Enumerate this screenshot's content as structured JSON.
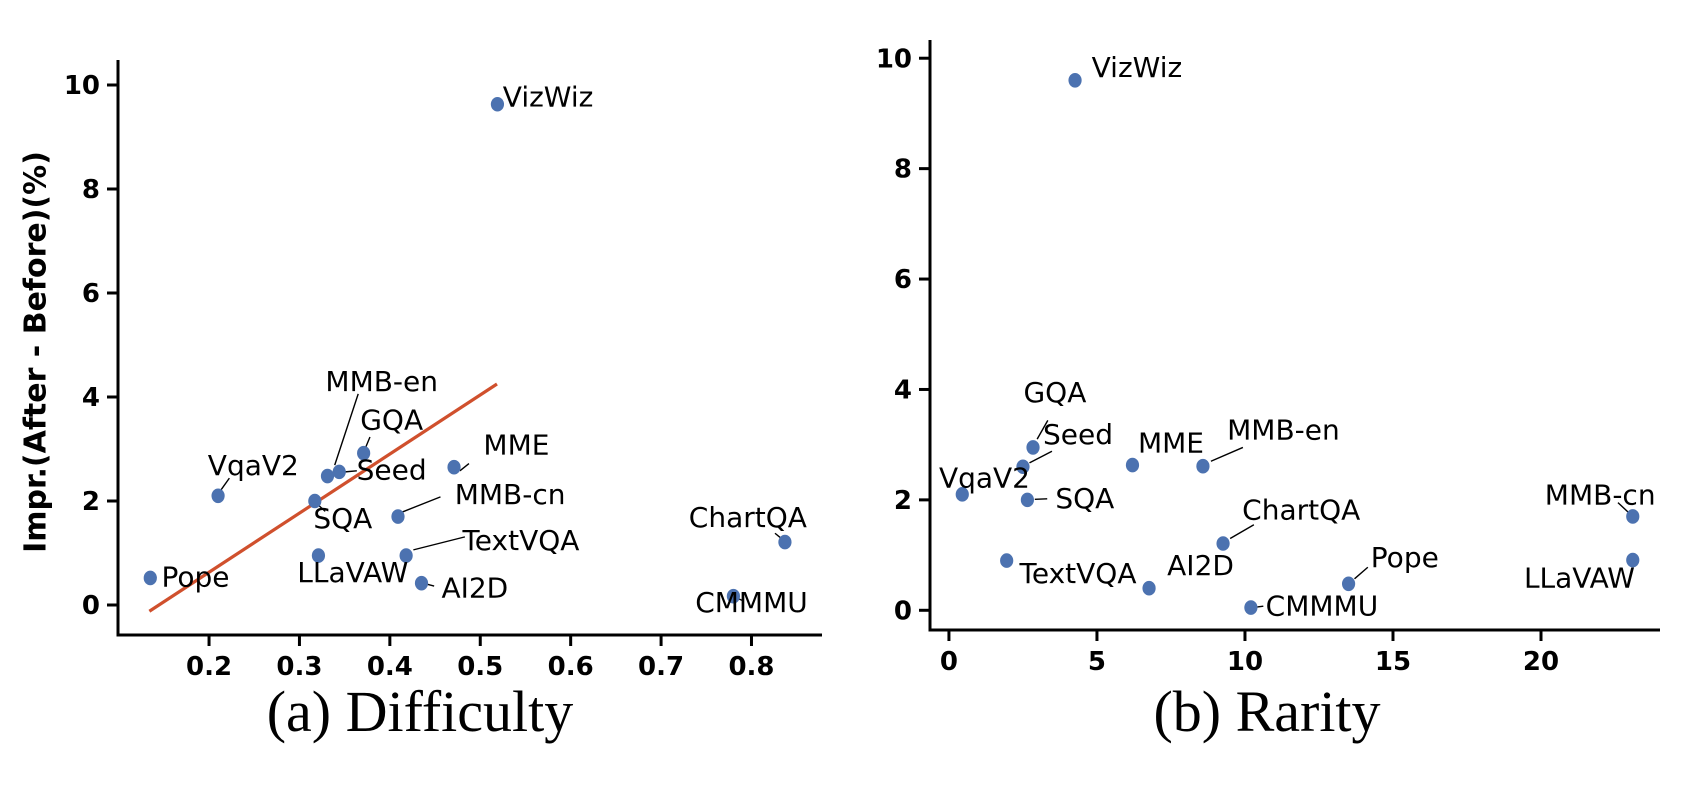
{
  "figure": {
    "point_color": "#4c72b0",
    "trend_color": "#d0502d",
    "axis_color": "#000000"
  },
  "chart_data": [
    {
      "type": "scatter",
      "caption": "(a) Difficulty",
      "xlabel": "",
      "ylabel": "Impr.(After - Before)(%)",
      "xlim": [
        0.0993,
        0.878
      ],
      "ylim": [
        -0.577,
        10.481
      ],
      "xticks": [
        0.2,
        0.3,
        0.4,
        0.5,
        0.6,
        0.7,
        0.8
      ],
      "xtick_labels": [
        "0.2",
        "0.3",
        "0.4",
        "0.5",
        "0.6",
        "0.7",
        "0.8"
      ],
      "yticks": [
        0,
        2,
        4,
        6,
        8,
        10
      ],
      "ytick_labels": [
        "0",
        "2",
        "4",
        "6",
        "8",
        "10"
      ],
      "grid": false,
      "legend": null,
      "trendline": {
        "x1": 0.134,
        "y1": -0.12,
        "x2": 0.5185,
        "y2": 4.25
      },
      "points": [
        {
          "label": "Pope",
          "x": 0.135,
          "y": 0.52,
          "lx": 0.185,
          "ly": 0.54,
          "leader": [
            0.136,
            0.52,
            0.142,
            0.53
          ]
        },
        {
          "label": "VqaV2",
          "x": 0.21,
          "y": 2.1,
          "lx": 0.249,
          "ly": 2.69,
          "leader": [
            0.2135,
            2.22,
            0.2225,
            2.44
          ]
        },
        {
          "label": "SQA",
          "x": 0.317,
          "y": 2.0,
          "lx": 0.348,
          "ly": 1.67,
          "leader": [
            0.321,
            1.92,
            0.3285,
            1.8
          ]
        },
        {
          "label": "LLaVAW",
          "x": 0.321,
          "y": 0.95,
          "lx": 0.359,
          "ly": 0.63,
          "leader": null
        },
        {
          "label": "MMB-en",
          "x": 0.331,
          "y": 2.48,
          "lx": 0.391,
          "ly": 4.3,
          "leader": [
            0.339,
            2.69,
            0.365,
            4.06
          ]
        },
        {
          "label": "Seed",
          "x": 0.344,
          "y": 2.56,
          "lx": 0.402,
          "ly": 2.6,
          "leader": [
            0.3505,
            2.56,
            0.3635,
            2.58
          ]
        },
        {
          "label": "GQA",
          "x": 0.371,
          "y": 2.92,
          "lx": 0.402,
          "ly": 3.56,
          "leader": [
            0.378,
            3.23,
            0.3725,
            3.0
          ]
        },
        {
          "label": "MMB-cn",
          "x": 0.409,
          "y": 1.7,
          "lx": 0.533,
          "ly": 2.13,
          "leader": [
            0.456,
            2.08,
            0.414,
            1.79
          ]
        },
        {
          "label": "TextVQA",
          "x": 0.418,
          "y": 0.95,
          "lx": 0.545,
          "ly": 1.25,
          "leader": [
            0.483,
            1.31,
            0.426,
            1.06
          ]
        },
        {
          "label": "AI2D",
          "x": 0.435,
          "y": 0.42,
          "lx": 0.494,
          "ly": 0.33,
          "leader": [
            0.441,
            0.4,
            0.449,
            0.365
          ]
        },
        {
          "label": "MME",
          "x": 0.471,
          "y": 2.65,
          "lx": 0.54,
          "ly": 3.08,
          "leader": [
            0.4775,
            2.58,
            0.4875,
            2.72
          ]
        },
        {
          "label": "VizWiz",
          "x": 0.519,
          "y": 9.63,
          "lx": 0.575,
          "ly": 9.78,
          "leader": null
        },
        {
          "label": "CMMMU",
          "x": 0.78,
          "y": 0.17,
          "lx": 0.8,
          "ly": 0.05,
          "leader": [
            0.783,
            0.14,
            0.791,
            0.08
          ]
        },
        {
          "label": "ChartQA",
          "x": 0.837,
          "y": 1.21,
          "lx": 0.796,
          "ly": 1.69,
          "leader": [
            0.826,
            1.38,
            0.833,
            1.28
          ]
        }
      ]
    },
    {
      "type": "scatter",
      "caption": "(b) Rarity",
      "xlabel": "",
      "ylabel": "",
      "xlim": [
        -0.64,
        24.02
      ],
      "ylim": [
        -0.357,
        10.33
      ],
      "xticks": [
        0,
        5,
        10,
        15,
        20
      ],
      "xtick_labels": [
        "0",
        "5",
        "10",
        "15",
        "20"
      ],
      "yticks": [
        0,
        2,
        4,
        6,
        8,
        10
      ],
      "ytick_labels": [
        "0",
        "2",
        "4",
        "6",
        "8",
        "10"
      ],
      "grid": false,
      "legend": null,
      "trendline": null,
      "points": [
        {
          "label": "VqaV2",
          "x": 0.45,
          "y": 2.1,
          "lx": 1.2,
          "ly": 2.4,
          "leader": null
        },
        {
          "label": "TextVQA",
          "x": 1.95,
          "y": 0.9,
          "lx": 4.36,
          "ly": 0.67,
          "leader": null
        },
        {
          "label": "Seed",
          "x": 2.5,
          "y": 2.6,
          "lx": 4.36,
          "ly": 3.19,
          "leader": [
            3.48,
            2.88,
            2.72,
            2.67
          ]
        },
        {
          "label": "SQA",
          "x": 2.65,
          "y": 2.0,
          "lx": 4.59,
          "ly": 2.03,
          "leader": [
            2.9,
            2.01,
            3.32,
            2.02
          ]
        },
        {
          "label": "GQA",
          "x": 2.84,
          "y": 2.95,
          "lx": 3.58,
          "ly": 3.95,
          "leader": [
            3.34,
            3.44,
            2.98,
            3.1
          ]
        },
        {
          "label": "VizWiz",
          "x": 4.26,
          "y": 9.6,
          "lx": 6.35,
          "ly": 9.84,
          "leader": null
        },
        {
          "label": "MME",
          "x": 6.2,
          "y": 2.63,
          "lx": 7.5,
          "ly": 3.04,
          "leader": null
        },
        {
          "label": "AI2D",
          "x": 6.76,
          "y": 0.4,
          "lx": 8.5,
          "ly": 0.82,
          "leader": null
        },
        {
          "label": "MMB-en",
          "x": 8.58,
          "y": 2.61,
          "lx": 11.3,
          "ly": 3.27,
          "leader": [
            9.93,
            2.95,
            8.85,
            2.7
          ]
        },
        {
          "label": "ChartQA",
          "x": 9.26,
          "y": 1.21,
          "lx": 11.9,
          "ly": 1.82,
          "leader": [
            10.3,
            1.55,
            9.5,
            1.3
          ]
        },
        {
          "label": "CMMMU",
          "x": 10.2,
          "y": 0.05,
          "lx": 12.6,
          "ly": 0.08,
          "leader": [
            10.42,
            0.06,
            10.62,
            0.075
          ]
        },
        {
          "label": "Pope",
          "x": 13.5,
          "y": 0.48,
          "lx": 15.4,
          "ly": 0.96,
          "leader": [
            13.7,
            0.57,
            14.15,
            0.78
          ]
        },
        {
          "label": "MMB-cn",
          "x": 23.1,
          "y": 1.7,
          "lx": 22.0,
          "ly": 2.09,
          "leader": [
            22.6,
            1.95,
            22.98,
            1.76
          ]
        },
        {
          "label": "LLaVAW",
          "x": 23.1,
          "y": 0.91,
          "lx": 21.3,
          "ly": 0.59,
          "leader": null
        }
      ]
    }
  ]
}
